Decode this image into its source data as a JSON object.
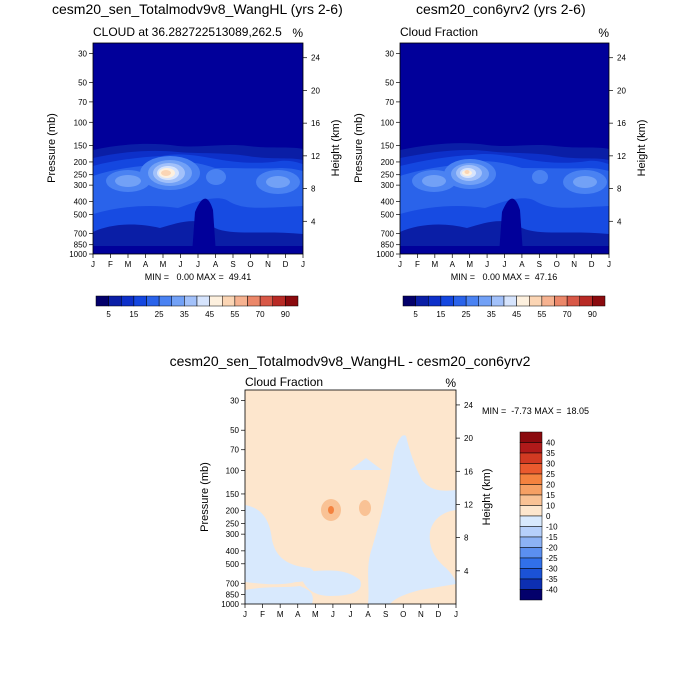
{
  "chart_data": [
    {
      "type": "contour",
      "title": "cesm20_sen_Totalmodv9v8_WangHL (yrs 2-6)",
      "subtitle_left": "CLOUD at 36.282722513089,262.5",
      "subtitle_right": "%",
      "ylabel": "Pressure (mb)",
      "ylabel_right": "Height (km)",
      "x_ticks": [
        "J",
        "F",
        "M",
        "A",
        "M",
        "J",
        "J",
        "A",
        "S",
        "O",
        "N",
        "D",
        "J"
      ],
      "pressure_ticks": [
        30,
        50,
        70,
        100,
        150,
        200,
        250,
        300,
        400,
        500,
        700,
        850,
        1000
      ],
      "height_ticks": [
        24,
        20,
        16,
        12,
        8,
        4
      ],
      "stats": "MIN =   0.00 MAX =  49.41",
      "min": 0.0,
      "max": 49.41,
      "max_location": {
        "month": "May",
        "pressure_mb": 250
      }
    },
    {
      "type": "contour",
      "title": "cesm20_con6yrv2 (yrs 2-6)",
      "subtitle_left": "Cloud Fraction",
      "subtitle_right": "%",
      "ylabel": "Pressure (mb)",
      "ylabel_right": "Height (km)",
      "x_ticks": [
        "J",
        "F",
        "M",
        "A",
        "M",
        "J",
        "J",
        "A",
        "S",
        "O",
        "N",
        "D",
        "J"
      ],
      "pressure_ticks": [
        30,
        50,
        70,
        100,
        150,
        200,
        250,
        300,
        400,
        500,
        700,
        850,
        1000
      ],
      "height_ticks": [
        24,
        20,
        16,
        12,
        8,
        4
      ],
      "stats": "MIN =   0.00 MAX =  47.16",
      "min": 0.0,
      "max": 47.16,
      "max_location": {
        "month": "May",
        "pressure_mb": 250
      }
    },
    {
      "type": "contour",
      "title": "cesm20_sen_Totalmodv9v8_WangHL - cesm20_con6yrv2",
      "subtitle_left": "Cloud Fraction",
      "subtitle_right": "%",
      "ylabel": "Pressure (mb)",
      "ylabel_right": "Height (km)",
      "x_ticks": [
        "J",
        "F",
        "M",
        "A",
        "M",
        "J",
        "J",
        "A",
        "S",
        "O",
        "N",
        "D",
        "J"
      ],
      "pressure_ticks": [
        30,
        50,
        70,
        100,
        150,
        200,
        250,
        300,
        400,
        500,
        700,
        850,
        1000
      ],
      "height_ticks": [
        24,
        20,
        16,
        12,
        8,
        4
      ],
      "stats": "MIN =  -7.73 MAX =  18.05",
      "min": -7.73,
      "max": 18.05
    }
  ],
  "colorbar_top": {
    "colors": [
      "#03006b",
      "#0a1ea6",
      "#0d30c9",
      "#1447e0",
      "#2a63ea",
      "#4a82f2",
      "#72a1f6",
      "#a2c1fa",
      "#d6e4fd",
      "#fdf0de",
      "#fbd5b4",
      "#f6b290",
      "#eb8769",
      "#d85847",
      "#b82a25",
      "#8b0a0e"
    ],
    "labels": [
      "5",
      "15",
      "25",
      "35",
      "45",
      "55",
      "70",
      "90"
    ]
  },
  "colorbar_diff": {
    "colors": [
      "#8b0a0e",
      "#b01a1a",
      "#d23a22",
      "#ea5a2e",
      "#f4823f",
      "#f6a064",
      "#f9c295",
      "#fde6cd",
      "#d8e9fd",
      "#b6d0fb",
      "#8cb2f5",
      "#5b8ff0",
      "#3170ea",
      "#1b52d6",
      "#0d2fb2",
      "#03006b"
    ],
    "labels": [
      "40",
      "35",
      "30",
      "25",
      "20",
      "15",
      "10",
      "0",
      "-10",
      "-15",
      "-20",
      "-25",
      "-30",
      "-35",
      "-40"
    ]
  },
  "colors": {
    "background_field": "#01009a",
    "diff_pos": "#fde6cd",
    "diff_neg": "#d8e9fd",
    "diff_mid": "#f7c0a0"
  }
}
